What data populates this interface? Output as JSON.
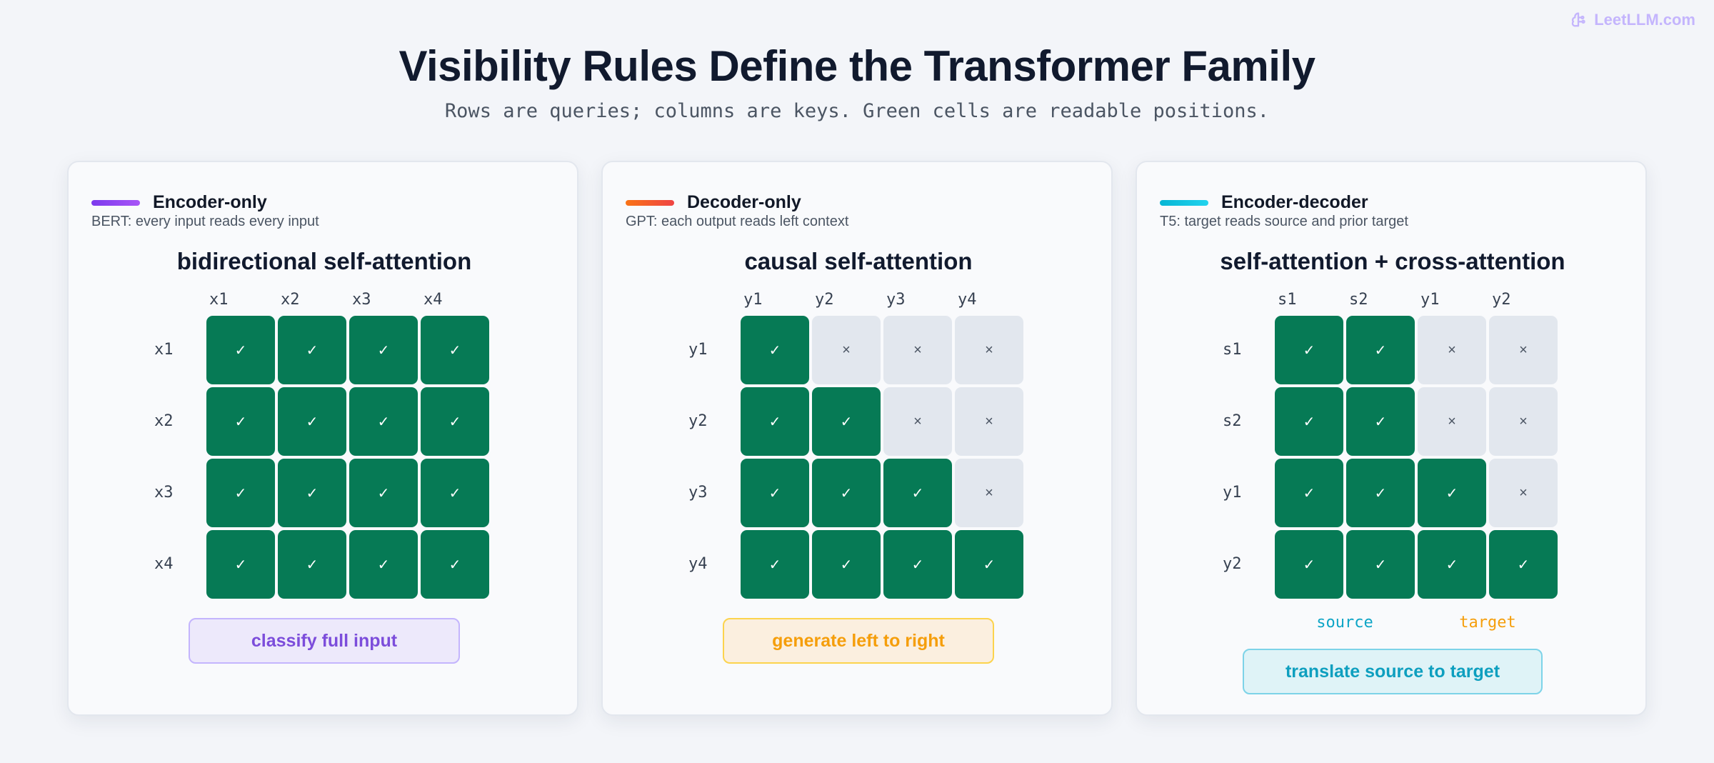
{
  "brand": {
    "text": "LeetLLM.com",
    "color": "#c4b5fd",
    "icon": "brain-icon"
  },
  "title": "Visibility Rules Define the Transformer Family",
  "subtitle": "Rows are queries; columns are keys. Green cells are readable positions.",
  "colors": {
    "readable": "#067a55",
    "blocked": "#e2e7ee"
  },
  "symbols": {
    "readable": "✓",
    "blocked": "×"
  },
  "panels": [
    {
      "name": "Encoder-only",
      "desc": "BERT: every input reads every input",
      "accent": [
        "#7c3aed",
        "#a855f7"
      ],
      "mode": "bidirectional self-attention",
      "cols": [
        "x1",
        "x2",
        "x3",
        "x4"
      ],
      "rows": [
        "x1",
        "x2",
        "x3",
        "x4"
      ],
      "matrix": [
        [
          1,
          1,
          1,
          1
        ],
        [
          1,
          1,
          1,
          1
        ],
        [
          1,
          1,
          1,
          1
        ],
        [
          1,
          1,
          1,
          1
        ]
      ],
      "groups": [],
      "task": {
        "label": "classify full input",
        "bg": "#ede9fb",
        "border": "#c4b5fd",
        "color": "#7c4ddb"
      }
    },
    {
      "name": "Decoder-only",
      "desc": "GPT: each output reads left context",
      "accent": [
        "#f97316",
        "#ef4444"
      ],
      "mode": "causal self-attention",
      "cols": [
        "y1",
        "y2",
        "y3",
        "y4"
      ],
      "rows": [
        "y1",
        "y2",
        "y3",
        "y4"
      ],
      "matrix": [
        [
          1,
          0,
          0,
          0
        ],
        [
          1,
          1,
          0,
          0
        ],
        [
          1,
          1,
          1,
          0
        ],
        [
          1,
          1,
          1,
          1
        ]
      ],
      "groups": [],
      "task": {
        "label": "generate left to right",
        "bg": "#fbefdf",
        "border": "#fcd34d",
        "color": "#f59e0b"
      }
    },
    {
      "name": "Encoder-decoder",
      "desc": "T5: target reads source and prior target",
      "accent": [
        "#06b6d4",
        "#22d3ee"
      ],
      "mode": "self-attention + cross-attention",
      "cols": [
        "s1",
        "s2",
        "y1",
        "y2"
      ],
      "rows": [
        "s1",
        "s2",
        "y1",
        "y2"
      ],
      "matrix": [
        [
          1,
          1,
          0,
          0
        ],
        [
          1,
          1,
          0,
          0
        ],
        [
          1,
          1,
          1,
          0
        ],
        [
          1,
          1,
          1,
          1
        ]
      ],
      "groups": [
        {
          "label": "source",
          "color": "#0ea5c6"
        },
        {
          "label": "target",
          "color": "#f59e0b"
        }
      ],
      "task": {
        "label": "translate source to target",
        "bg": "#dff3f7",
        "border": "#7dd3e8",
        "color": "#0e9fbf"
      }
    }
  ]
}
